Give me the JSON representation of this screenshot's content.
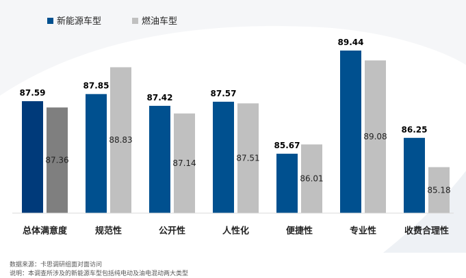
{
  "chart_data": {
    "type": "bar",
    "title": "",
    "xlabel": "",
    "ylabel": "",
    "legend_position": "top-left",
    "categories": [
      "总体满意度",
      "规范性",
      "公开性",
      "人性化",
      "便捷性",
      "专业性",
      "收费合理性"
    ],
    "series": [
      {
        "name": "新能源车型",
        "values": [
          87.59,
          87.85,
          87.42,
          87.57,
          85.67,
          89.44,
          86.25
        ],
        "labels": [
          "87.59",
          "87.85",
          "87.42",
          "87.57",
          "85.67",
          "89.44",
          "86.25"
        ],
        "color": "#00508f",
        "first_color": "#003a7a"
      },
      {
        "name": "燃油车型",
        "values": [
          87.36,
          88.83,
          87.14,
          87.51,
          86.01,
          89.08,
          85.18
        ],
        "labels": [
          "87.36",
          "88.83",
          "87.14",
          "87.51",
          "86.01",
          "89.08",
          "85.18"
        ],
        "color": "#c0c0c0",
        "first_color": "#7f7f7f"
      }
    ],
    "ylim": [
      83.5,
      90.0
    ],
    "grid": false
  },
  "notes": {
    "source": "数据来源：卡思调研组面对面访问",
    "description": "说明：本调查所涉及的新能源车型包括纯电动及油电混动两大类型"
  }
}
